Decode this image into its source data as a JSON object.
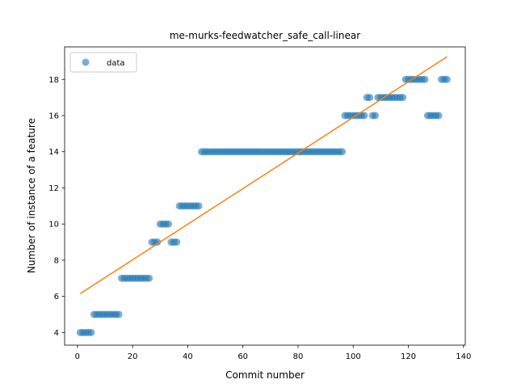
{
  "chart_data": {
    "type": "scatter",
    "title": "me-murks-feedwatcher_safe_call-linear",
    "xlabel": "Commit number",
    "ylabel": "Number of instance of a feature",
    "xlim": [
      -4.65,
      140.65
    ],
    "ylim": [
      3.3,
      19.8
    ],
    "xticks": [
      0,
      20,
      40,
      60,
      80,
      100,
      120,
      140
    ],
    "yticks": [
      4,
      6,
      8,
      10,
      12,
      14,
      16,
      18
    ],
    "grid": false,
    "legend": {
      "placement": "top-left",
      "entries": [
        "data"
      ]
    },
    "colors": {
      "data": "#1f77b4",
      "fit": "#ff7f0e"
    },
    "series": [
      {
        "name": "data",
        "kind": "scatter",
        "points": [
          [
            1,
            4
          ],
          [
            2,
            4
          ],
          [
            3,
            4
          ],
          [
            4,
            4
          ],
          [
            5,
            4
          ],
          [
            6,
            5
          ],
          [
            7,
            5
          ],
          [
            8,
            5
          ],
          [
            9,
            5
          ],
          [
            10,
            5
          ],
          [
            11,
            5
          ],
          [
            12,
            5
          ],
          [
            13,
            5
          ],
          [
            14,
            5
          ],
          [
            15,
            5
          ],
          [
            16,
            7
          ],
          [
            17,
            7
          ],
          [
            18,
            7
          ],
          [
            19,
            7
          ],
          [
            20,
            7
          ],
          [
            21,
            7
          ],
          [
            22,
            7
          ],
          [
            23,
            7
          ],
          [
            24,
            7
          ],
          [
            25,
            7
          ],
          [
            26,
            7
          ],
          [
            27,
            9
          ],
          [
            28,
            9
          ],
          [
            29,
            9
          ],
          [
            30,
            10
          ],
          [
            31,
            10
          ],
          [
            32,
            10
          ],
          [
            33,
            10
          ],
          [
            34,
            9
          ],
          [
            35,
            9
          ],
          [
            36,
            9
          ],
          [
            37,
            11
          ],
          [
            38,
            11
          ],
          [
            39,
            11
          ],
          [
            40,
            11
          ],
          [
            41,
            11
          ],
          [
            42,
            11
          ],
          [
            43,
            11
          ],
          [
            44,
            11
          ],
          [
            45,
            14
          ],
          [
            46,
            14
          ],
          [
            47,
            14
          ],
          [
            48,
            14
          ],
          [
            49,
            14
          ],
          [
            50,
            14
          ],
          [
            51,
            14
          ],
          [
            52,
            14
          ],
          [
            53,
            14
          ],
          [
            54,
            14
          ],
          [
            55,
            14
          ],
          [
            56,
            14
          ],
          [
            57,
            14
          ],
          [
            58,
            14
          ],
          [
            59,
            14
          ],
          [
            60,
            14
          ],
          [
            61,
            14
          ],
          [
            62,
            14
          ],
          [
            63,
            14
          ],
          [
            64,
            14
          ],
          [
            65,
            14
          ],
          [
            66,
            14
          ],
          [
            67,
            14
          ],
          [
            68,
            14
          ],
          [
            69,
            14
          ],
          [
            70,
            14
          ],
          [
            71,
            14
          ],
          [
            72,
            14
          ],
          [
            73,
            14
          ],
          [
            74,
            14
          ],
          [
            75,
            14
          ],
          [
            76,
            14
          ],
          [
            77,
            14
          ],
          [
            78,
            14
          ],
          [
            79,
            14
          ],
          [
            80,
            14
          ],
          [
            81,
            14
          ],
          [
            82,
            14
          ],
          [
            83,
            14
          ],
          [
            84,
            14
          ],
          [
            85,
            14
          ],
          [
            86,
            14
          ],
          [
            87,
            14
          ],
          [
            88,
            14
          ],
          [
            89,
            14
          ],
          [
            90,
            14
          ],
          [
            91,
            14
          ],
          [
            92,
            14
          ],
          [
            93,
            14
          ],
          [
            94,
            14
          ],
          [
            95,
            14
          ],
          [
            96,
            14
          ],
          [
            97,
            16
          ],
          [
            98,
            16
          ],
          [
            99,
            16
          ],
          [
            100,
            16
          ],
          [
            101,
            16
          ],
          [
            102,
            16
          ],
          [
            103,
            16
          ],
          [
            104,
            16
          ],
          [
            105,
            17
          ],
          [
            106,
            17
          ],
          [
            107,
            16
          ],
          [
            108,
            16
          ],
          [
            109,
            17
          ],
          [
            110,
            17
          ],
          [
            111,
            17
          ],
          [
            112,
            17
          ],
          [
            113,
            17
          ],
          [
            114,
            17
          ],
          [
            115,
            17
          ],
          [
            116,
            17
          ],
          [
            117,
            17
          ],
          [
            118,
            17
          ],
          [
            119,
            18
          ],
          [
            120,
            18
          ],
          [
            121,
            18
          ],
          [
            122,
            18
          ],
          [
            123,
            18
          ],
          [
            124,
            18
          ],
          [
            125,
            18
          ],
          [
            126,
            18
          ],
          [
            127,
            16
          ],
          [
            128,
            16
          ],
          [
            129,
            16
          ],
          [
            130,
            16
          ],
          [
            131,
            16
          ],
          [
            132,
            18
          ],
          [
            133,
            18
          ],
          [
            134,
            18
          ]
        ]
      },
      {
        "kind": "line",
        "points": [
          [
            1,
            6.15
          ],
          [
            134,
            19.25
          ]
        ]
      }
    ]
  }
}
